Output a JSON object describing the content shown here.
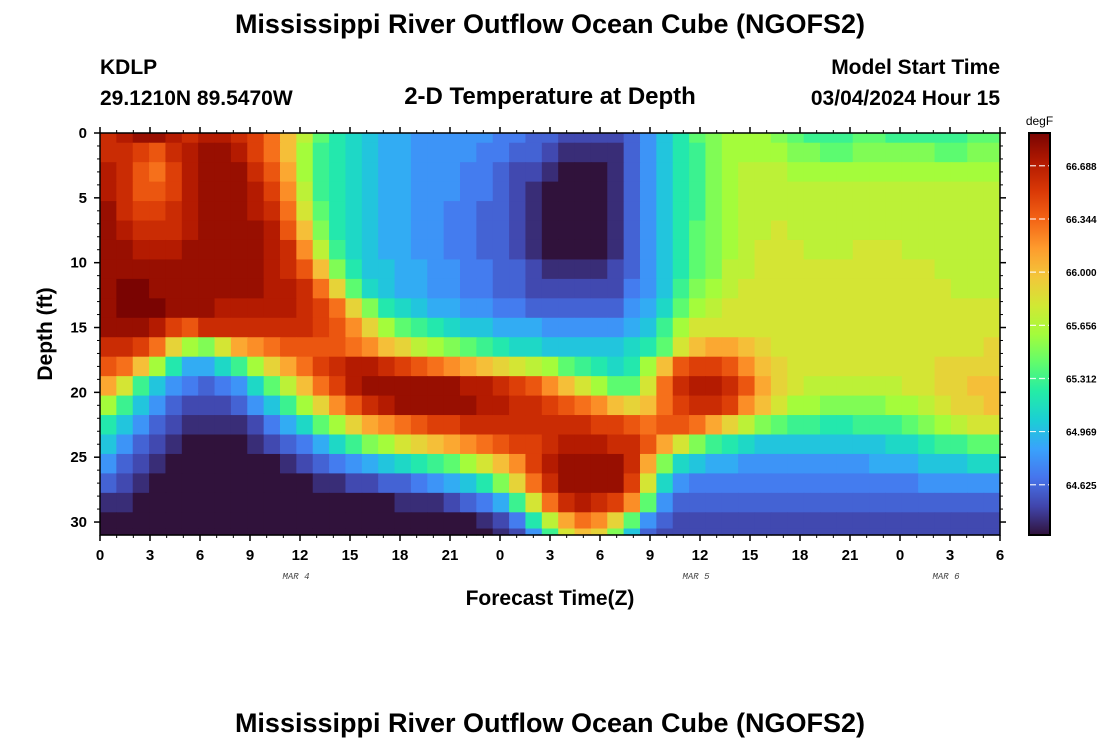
{
  "header": {
    "title": "Mississippi River Outflow Ocean Cube (NGOFS2)",
    "station_id": "KDLP",
    "station_coords": "29.1210N  89.5470W",
    "plot_title": "2-D Temperature at Depth",
    "start_label": "Model Start Time",
    "start_value": "03/04/2024 Hour 15"
  },
  "footer": {
    "title": "Mississippi River Outflow Ocean Cube (NGOFS2)"
  },
  "chart_data": {
    "type": "heatmap",
    "title": "2-D Temperature at Depth",
    "xlabel": "Forecast Time(Z)",
    "ylabel": "Depth (ft)",
    "x_tick_labels": [
      "0",
      "3",
      "6",
      "9",
      "12",
      "15",
      "18",
      "21",
      "0",
      "3",
      "6",
      "9",
      "12",
      "15",
      "18",
      "21",
      "0",
      "3",
      "6"
    ],
    "day_labels": [
      {
        "text": "MAR 4",
        "at_tick": 4
      },
      {
        "text": "MAR 5",
        "at_tick": 12
      },
      {
        "text": "MAR 6",
        "at_tick": 17
      }
    ],
    "y_ticks": [
      0,
      5,
      10,
      15,
      20,
      25,
      30
    ],
    "ylim": [
      0,
      31
    ],
    "colorbar": {
      "unit": "degF",
      "labels": [
        "66.688",
        "66.344",
        "66.000",
        "65.656",
        "65.312",
        "64.969",
        "64.625"
      ],
      "range": [
        64.3,
        66.9
      ],
      "colormap": [
        "#30123b",
        "#4145ab",
        "#4675ed",
        "#39a2fc",
        "#1bcfd4",
        "#24eca6",
        "#61fc6c",
        "#a4fc3b",
        "#d1e834",
        "#f3c63a",
        "#fe9b2d",
        "#f36315",
        "#d93806",
        "#b11901",
        "#7a0402"
      ]
    },
    "time_columns": [
      "0",
      "1",
      "2",
      "3",
      "4",
      "5",
      "6",
      "7",
      "8",
      "9",
      "10",
      "11",
      "12",
      "13",
      "14",
      "15",
      "16",
      "17",
      "18",
      "19",
      "20",
      "21",
      "22",
      "23",
      "24",
      "25",
      "26",
      "27",
      "28",
      "29",
      "30",
      "31",
      "32",
      "33",
      "34",
      "35",
      "36",
      "37",
      "38",
      "39",
      "40",
      "41",
      "42",
      "43",
      "44",
      "45",
      "46",
      "47",
      "48",
      "49",
      "50",
      "51",
      "52",
      "53",
      "54"
    ],
    "depth_rows": [
      0,
      1.5,
      3,
      4.5,
      6,
      7.5,
      9,
      10.5,
      12,
      13.5,
      15,
      16.5,
      18,
      19.5,
      21,
      22.5,
      24,
      25.5,
      27,
      28.5,
      30,
      31
    ],
    "temperature": [
      [
        66.6,
        66.7,
        66.8,
        66.8,
        66.7,
        66.6,
        66.7,
        66.7,
        66.6,
        66.5,
        66.3,
        66.0,
        65.7,
        65.4,
        65.2,
        65.1,
        65.0,
        64.9,
        64.9,
        64.8,
        64.8,
        64.8,
        64.8,
        64.8,
        64.7,
        64.7,
        64.6,
        64.6,
        64.5,
        64.5,
        64.5,
        64.5,
        64.6,
        64.8,
        65.0,
        65.2,
        65.4,
        65.5,
        65.6,
        65.6,
        65.6,
        65.5,
        65.4,
        65.3,
        65.3,
        65.3,
        65.4,
        65.4,
        65.3,
        65.3,
        65.3,
        65.3,
        65.3,
        65.4,
        65.4
      ],
      [
        66.6,
        66.6,
        66.5,
        66.4,
        66.6,
        66.7,
        66.8,
        66.8,
        66.7,
        66.5,
        66.3,
        66.0,
        65.6,
        65.3,
        65.2,
        65.1,
        65.0,
        64.9,
        64.9,
        64.8,
        64.8,
        64.8,
        64.8,
        64.7,
        64.7,
        64.6,
        64.6,
        64.5,
        64.4,
        64.4,
        64.4,
        64.4,
        64.6,
        64.8,
        65.0,
        65.2,
        65.3,
        65.5,
        65.6,
        65.6,
        65.6,
        65.6,
        65.5,
        65.5,
        65.4,
        65.4,
        65.5,
        65.5,
        65.5,
        65.5,
        65.5,
        65.4,
        65.4,
        65.5,
        65.5
      ],
      [
        66.7,
        66.6,
        66.4,
        66.3,
        66.5,
        66.7,
        66.8,
        66.8,
        66.8,
        66.6,
        66.4,
        66.1,
        65.6,
        65.3,
        65.2,
        65.1,
        65.0,
        64.9,
        64.9,
        64.8,
        64.8,
        64.8,
        64.7,
        64.7,
        64.6,
        64.5,
        64.5,
        64.4,
        64.3,
        64.3,
        64.3,
        64.4,
        64.6,
        64.8,
        65.0,
        65.2,
        65.3,
        65.5,
        65.6,
        65.7,
        65.7,
        65.7,
        65.6,
        65.6,
        65.6,
        65.6,
        65.6,
        65.6,
        65.6,
        65.6,
        65.6,
        65.6,
        65.6,
        65.6,
        65.6
      ],
      [
        66.7,
        66.6,
        66.4,
        66.4,
        66.5,
        66.7,
        66.8,
        66.8,
        66.8,
        66.7,
        66.5,
        66.2,
        65.7,
        65.3,
        65.2,
        65.1,
        65.0,
        64.9,
        64.9,
        64.8,
        64.8,
        64.8,
        64.7,
        64.7,
        64.6,
        64.5,
        64.4,
        64.3,
        64.3,
        64.3,
        64.3,
        64.4,
        64.6,
        64.8,
        65.0,
        65.2,
        65.3,
        65.5,
        65.6,
        65.7,
        65.7,
        65.7,
        65.7,
        65.7,
        65.7,
        65.7,
        65.7,
        65.7,
        65.7,
        65.7,
        65.7,
        65.7,
        65.7,
        65.7,
        65.7
      ],
      [
        66.8,
        66.6,
        66.5,
        66.5,
        66.6,
        66.7,
        66.8,
        66.8,
        66.8,
        66.7,
        66.6,
        66.3,
        65.8,
        65.4,
        65.2,
        65.1,
        65.0,
        64.9,
        64.9,
        64.8,
        64.8,
        64.7,
        64.7,
        64.6,
        64.6,
        64.5,
        64.4,
        64.3,
        64.3,
        64.3,
        64.3,
        64.4,
        64.6,
        64.8,
        65.0,
        65.2,
        65.3,
        65.5,
        65.6,
        65.7,
        65.7,
        65.7,
        65.7,
        65.7,
        65.7,
        65.7,
        65.7,
        65.7,
        65.7,
        65.7,
        65.7,
        65.7,
        65.7,
        65.7,
        65.7
      ],
      [
        66.8,
        66.7,
        66.6,
        66.6,
        66.6,
        66.7,
        66.8,
        66.8,
        66.8,
        66.8,
        66.7,
        66.4,
        66.0,
        65.5,
        65.2,
        65.1,
        65.0,
        64.9,
        64.9,
        64.8,
        64.8,
        64.7,
        64.7,
        64.6,
        64.6,
        64.5,
        64.4,
        64.3,
        64.3,
        64.3,
        64.3,
        64.4,
        64.6,
        64.8,
        65.0,
        65.2,
        65.4,
        65.5,
        65.6,
        65.7,
        65.7,
        65.8,
        65.7,
        65.7,
        65.7,
        65.7,
        65.7,
        65.7,
        65.7,
        65.7,
        65.7,
        65.7,
        65.7,
        65.7,
        65.7
      ],
      [
        66.8,
        66.8,
        66.7,
        66.7,
        66.7,
        66.8,
        66.8,
        66.8,
        66.8,
        66.8,
        66.7,
        66.6,
        66.2,
        65.7,
        65.3,
        65.1,
        65.0,
        64.9,
        64.9,
        64.8,
        64.8,
        64.7,
        64.7,
        64.6,
        64.6,
        64.5,
        64.4,
        64.3,
        64.3,
        64.3,
        64.3,
        64.4,
        64.6,
        64.8,
        65.0,
        65.2,
        65.4,
        65.5,
        65.6,
        65.7,
        65.8,
        65.8,
        65.8,
        65.7,
        65.7,
        65.7,
        65.8,
        65.8,
        65.8,
        65.7,
        65.7,
        65.7,
        65.7,
        65.7,
        65.7
      ],
      [
        66.8,
        66.8,
        66.8,
        66.8,
        66.8,
        66.8,
        66.8,
        66.8,
        66.8,
        66.8,
        66.7,
        66.6,
        66.4,
        66.0,
        65.5,
        65.2,
        65.0,
        65.0,
        64.9,
        64.9,
        64.8,
        64.8,
        64.7,
        64.7,
        64.6,
        64.6,
        64.5,
        64.4,
        64.4,
        64.4,
        64.4,
        64.5,
        64.6,
        64.8,
        65.0,
        65.2,
        65.4,
        65.5,
        65.7,
        65.7,
        65.8,
        65.8,
        65.8,
        65.8,
        65.8,
        65.8,
        65.8,
        65.8,
        65.8,
        65.8,
        65.8,
        65.7,
        65.7,
        65.7,
        65.7
      ],
      [
        66.8,
        66.9,
        66.9,
        66.8,
        66.8,
        66.8,
        66.8,
        66.8,
        66.8,
        66.8,
        66.7,
        66.7,
        66.6,
        66.3,
        65.9,
        65.4,
        65.1,
        65.0,
        64.9,
        64.9,
        64.8,
        64.8,
        64.7,
        64.7,
        64.6,
        64.6,
        64.5,
        64.5,
        64.5,
        64.5,
        64.5,
        64.5,
        64.7,
        64.8,
        65.0,
        65.3,
        65.5,
        65.6,
        65.7,
        65.8,
        65.8,
        65.8,
        65.8,
        65.8,
        65.8,
        65.8,
        65.8,
        65.8,
        65.8,
        65.8,
        65.8,
        65.8,
        65.7,
        65.7,
        65.7
      ],
      [
        66.8,
        66.9,
        66.9,
        66.9,
        66.8,
        66.8,
        66.8,
        66.7,
        66.7,
        66.7,
        66.7,
        66.7,
        66.6,
        66.5,
        66.3,
        65.9,
        65.5,
        65.2,
        65.1,
        65.0,
        64.9,
        64.9,
        64.8,
        64.8,
        64.7,
        64.7,
        64.6,
        64.6,
        64.6,
        64.6,
        64.6,
        64.6,
        64.8,
        64.9,
        65.1,
        65.4,
        65.6,
        65.7,
        65.8,
        65.8,
        65.8,
        65.8,
        65.8,
        65.8,
        65.8,
        65.8,
        65.8,
        65.8,
        65.8,
        65.8,
        65.8,
        65.8,
        65.8,
        65.8,
        65.8
      ],
      [
        66.8,
        66.8,
        66.8,
        66.7,
        66.5,
        66.4,
        66.6,
        66.6,
        66.6,
        66.6,
        66.6,
        66.6,
        66.6,
        66.5,
        66.4,
        66.2,
        65.9,
        65.6,
        65.4,
        65.3,
        65.2,
        65.1,
        65.0,
        65.0,
        64.9,
        64.9,
        64.9,
        64.8,
        64.8,
        64.8,
        64.8,
        64.8,
        64.9,
        65.0,
        65.3,
        65.6,
        65.8,
        65.8,
        65.8,
        65.8,
        65.8,
        65.8,
        65.8,
        65.8,
        65.8,
        65.8,
        65.8,
        65.8,
        65.8,
        65.8,
        65.8,
        65.8,
        65.8,
        65.8,
        65.8
      ],
      [
        66.6,
        66.6,
        66.5,
        66.3,
        65.9,
        65.6,
        65.5,
        65.8,
        66.1,
        66.2,
        66.3,
        66.4,
        66.4,
        66.4,
        66.4,
        66.3,
        66.2,
        66.0,
        65.9,
        65.7,
        65.6,
        65.5,
        65.4,
        65.3,
        65.2,
        65.1,
        65.1,
        65.0,
        65.0,
        65.0,
        65.0,
        65.0,
        65.1,
        65.2,
        65.4,
        65.8,
        66.0,
        66.1,
        66.1,
        66.0,
        65.9,
        65.8,
        65.8,
        65.8,
        65.8,
        65.8,
        65.8,
        65.8,
        65.8,
        65.8,
        65.8,
        65.8,
        65.8,
        65.8,
        65.9
      ],
      [
        66.4,
        66.3,
        66.0,
        65.6,
        65.2,
        64.9,
        64.9,
        65.1,
        65.3,
        65.6,
        65.9,
        66.1,
        66.3,
        66.5,
        66.6,
        66.7,
        66.7,
        66.6,
        66.5,
        66.4,
        66.3,
        66.2,
        66.1,
        66.0,
        65.9,
        65.8,
        65.7,
        65.6,
        65.4,
        65.3,
        65.2,
        65.1,
        65.2,
        65.6,
        66.0,
        66.4,
        66.5,
        66.5,
        66.4,
        66.2,
        66.0,
        65.9,
        65.8,
        65.8,
        65.8,
        65.8,
        65.8,
        65.8,
        65.8,
        65.8,
        65.8,
        65.9,
        65.9,
        65.9,
        65.9
      ],
      [
        66.1,
        65.8,
        65.3,
        65.0,
        64.8,
        64.7,
        64.6,
        64.7,
        64.8,
        65.1,
        65.4,
        65.7,
        66.0,
        66.3,
        66.5,
        66.7,
        66.8,
        66.8,
        66.8,
        66.8,
        66.8,
        66.8,
        66.7,
        66.7,
        66.6,
        66.5,
        66.4,
        66.2,
        66.0,
        65.8,
        65.6,
        65.4,
        65.4,
        65.8,
        66.3,
        66.6,
        66.7,
        66.7,
        66.6,
        66.4,
        66.1,
        65.9,
        65.8,
        65.7,
        65.7,
        65.7,
        65.7,
        65.7,
        65.7,
        65.8,
        65.8,
        65.9,
        65.9,
        66.0,
        66.0
      ],
      [
        65.6,
        65.3,
        65.0,
        64.8,
        64.6,
        64.5,
        64.5,
        64.5,
        64.6,
        64.8,
        65.0,
        65.3,
        65.6,
        65.9,
        66.2,
        66.4,
        66.6,
        66.7,
        66.8,
        66.8,
        66.8,
        66.8,
        66.8,
        66.7,
        66.7,
        66.6,
        66.6,
        66.5,
        66.4,
        66.3,
        66.2,
        66.0,
        65.9,
        66.0,
        66.3,
        66.5,
        66.6,
        66.6,
        66.5,
        66.2,
        66.0,
        65.8,
        65.6,
        65.6,
        65.5,
        65.5,
        65.5,
        65.5,
        65.6,
        65.6,
        65.7,
        65.8,
        65.9,
        65.9,
        66.0
      ],
      [
        65.2,
        65.0,
        64.8,
        64.6,
        64.5,
        64.4,
        64.4,
        64.4,
        64.4,
        64.5,
        64.7,
        64.9,
        65.1,
        65.4,
        65.6,
        65.9,
        66.1,
        66.2,
        66.3,
        66.4,
        66.5,
        66.5,
        66.6,
        66.6,
        66.6,
        66.6,
        66.6,
        66.6,
        66.6,
        66.6,
        66.5,
        66.5,
        66.4,
        66.3,
        66.4,
        66.4,
        66.3,
        66.1,
        65.9,
        65.7,
        65.5,
        65.4,
        65.3,
        65.3,
        65.2,
        65.2,
        65.3,
        65.3,
        65.3,
        65.4,
        65.5,
        65.6,
        65.7,
        65.8,
        65.8
      ],
      [
        65.0,
        64.8,
        64.6,
        64.5,
        64.4,
        64.3,
        64.3,
        64.3,
        64.3,
        64.4,
        64.5,
        64.6,
        64.7,
        64.9,
        65.1,
        65.3,
        65.5,
        65.6,
        65.8,
        65.9,
        66.0,
        66.1,
        66.2,
        66.3,
        66.4,
        66.5,
        66.5,
        66.6,
        66.7,
        66.7,
        66.7,
        66.6,
        66.6,
        66.4,
        66.1,
        65.8,
        65.5,
        65.3,
        65.2,
        65.1,
        65.0,
        65.0,
        65.0,
        65.0,
        65.0,
        65.0,
        65.0,
        65.0,
        65.1,
        65.1,
        65.2,
        65.3,
        65.3,
        65.4,
        65.4
      ],
      [
        64.8,
        64.6,
        64.5,
        64.4,
        64.3,
        64.3,
        64.2,
        64.2,
        64.2,
        64.3,
        64.3,
        64.4,
        64.5,
        64.6,
        64.7,
        64.8,
        64.9,
        65.0,
        65.1,
        65.2,
        65.3,
        65.4,
        65.6,
        65.8,
        66.0,
        66.2,
        66.5,
        66.7,
        66.8,
        66.8,
        66.8,
        66.8,
        66.6,
        66.1,
        65.5,
        65.1,
        65.0,
        64.9,
        64.9,
        64.8,
        64.8,
        64.8,
        64.8,
        64.8,
        64.8,
        64.8,
        64.8,
        64.9,
        64.9,
        64.9,
        65.0,
        65.0,
        65.0,
        65.1,
        65.1
      ],
      [
        64.6,
        64.5,
        64.4,
        64.3,
        64.3,
        64.2,
        64.2,
        64.2,
        64.2,
        64.2,
        64.2,
        64.3,
        64.3,
        64.4,
        64.4,
        64.5,
        64.5,
        64.6,
        64.6,
        64.7,
        64.8,
        64.9,
        65.0,
        65.2,
        65.5,
        65.9,
        66.3,
        66.6,
        66.8,
        66.8,
        66.8,
        66.8,
        66.5,
        65.8,
        65.1,
        64.8,
        64.7,
        64.7,
        64.7,
        64.7,
        64.7,
        64.7,
        64.7,
        64.7,
        64.7,
        64.7,
        64.7,
        64.7,
        64.7,
        64.7,
        64.8,
        64.8,
        64.8,
        64.8,
        64.8
      ],
      [
        64.4,
        64.4,
        64.3,
        64.2,
        64.2,
        64.2,
        64.2,
        64.1,
        64.1,
        64.1,
        64.1,
        64.2,
        64.2,
        64.2,
        64.2,
        64.3,
        64.3,
        64.3,
        64.4,
        64.4,
        64.4,
        64.5,
        64.6,
        64.7,
        64.9,
        65.3,
        65.8,
        66.3,
        66.6,
        66.7,
        66.6,
        66.5,
        66.2,
        65.4,
        64.8,
        64.6,
        64.6,
        64.6,
        64.6,
        64.6,
        64.6,
        64.6,
        64.6,
        64.6,
        64.6,
        64.6,
        64.6,
        64.6,
        64.6,
        64.6,
        64.6,
        64.6,
        64.6,
        64.6,
        64.6
      ],
      [
        64.3,
        64.2,
        64.2,
        64.2,
        64.1,
        64.1,
        64.1,
        64.1,
        64.1,
        64.1,
        64.1,
        64.1,
        64.1,
        64.1,
        64.1,
        64.2,
        64.2,
        64.2,
        64.2,
        64.2,
        64.3,
        64.3,
        64.3,
        64.4,
        64.5,
        64.7,
        65.2,
        65.7,
        66.1,
        66.3,
        66.2,
        65.9,
        65.4,
        64.8,
        64.6,
        64.5,
        64.5,
        64.5,
        64.5,
        64.5,
        64.5,
        64.5,
        64.5,
        64.5,
        64.5,
        64.5,
        64.5,
        64.5,
        64.5,
        64.5,
        64.5,
        64.5,
        64.5,
        64.5,
        64.5
      ],
      [
        64.2,
        64.2,
        64.1,
        64.1,
        64.1,
        64.1,
        64.1,
        64.1,
        64.1,
        64.1,
        64.1,
        64.1,
        64.1,
        64.1,
        64.1,
        64.1,
        64.1,
        64.1,
        64.1,
        64.1,
        64.2,
        64.2,
        64.2,
        64.3,
        64.4,
        64.5,
        64.8,
        65.3,
        65.8,
        66.0,
        65.9,
        65.5,
        65.0,
        64.6,
        64.5,
        64.5,
        64.5,
        64.5,
        64.5,
        64.5,
        64.5,
        64.5,
        64.5,
        64.5,
        64.5,
        64.5,
        64.5,
        64.5,
        64.5,
        64.5,
        64.5,
        64.5,
        64.5,
        64.5,
        64.5
      ]
    ]
  }
}
